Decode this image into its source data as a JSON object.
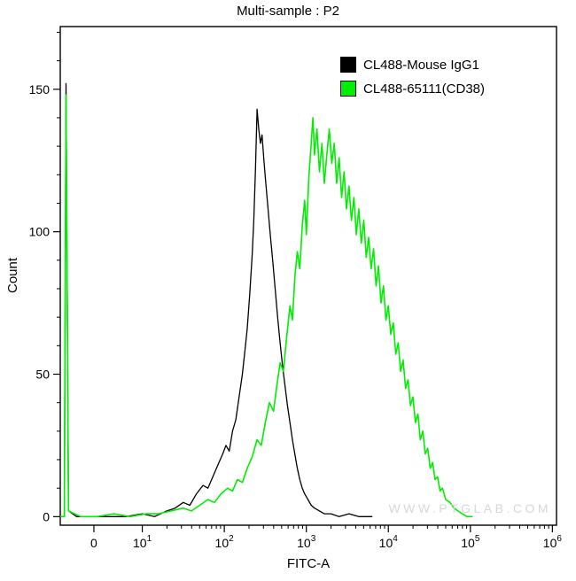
{
  "title": "Multi-sample : P2",
  "watermark": "WWW.PTGLAB.COM",
  "chart_data": {
    "type": "line",
    "subtype": "flow-cytometry-histogram-overlay",
    "title": "Multi-sample : P2",
    "xlabel": "FITC-A",
    "ylabel": "Count",
    "x_scale": "biexponential-log",
    "grid": false,
    "legend_position": "top-right",
    "xlim_decades": [
      0,
      6.05
    ],
    "ylim": [
      -3,
      172
    ],
    "y_ticks": [
      0,
      50,
      100,
      150
    ],
    "y_minor_step": 10,
    "x_ticks": [
      {
        "text": "0",
        "d": 0.41
      },
      {
        "text": "10",
        "exp": "1",
        "d": 1.0
      },
      {
        "text": "10",
        "exp": "2",
        "d": 2.0
      },
      {
        "text": "10",
        "exp": "3",
        "d": 3.0
      },
      {
        "text": "10",
        "exp": "4",
        "d": 4.0
      },
      {
        "text": "10",
        "exp": "5",
        "d": 5.0
      },
      {
        "text": "10",
        "exp": "6",
        "d": 6.0
      }
    ],
    "series": [
      {
        "name": "CL488-Mouse IgG1",
        "color": "#000000",
        "peak_x_decade": 2.4,
        "peak_count": 143,
        "points": [
          [
            0.0,
            0
          ],
          [
            0.05,
            0
          ],
          [
            0.07,
            152
          ],
          [
            0.1,
            2
          ],
          [
            0.2,
            0
          ],
          [
            0.4,
            0
          ],
          [
            0.6,
            0
          ],
          [
            0.8,
            0
          ],
          [
            1.0,
            1
          ],
          [
            1.15,
            0
          ],
          [
            1.3,
            2
          ],
          [
            1.4,
            3
          ],
          [
            1.5,
            5
          ],
          [
            1.58,
            4
          ],
          [
            1.66,
            8
          ],
          [
            1.74,
            11
          ],
          [
            1.8,
            10
          ],
          [
            1.86,
            14
          ],
          [
            1.92,
            18
          ],
          [
            1.98,
            22
          ],
          [
            2.02,
            25
          ],
          [
            2.06,
            23
          ],
          [
            2.1,
            30
          ],
          [
            2.14,
            34
          ],
          [
            2.18,
            42
          ],
          [
            2.22,
            50
          ],
          [
            2.25,
            58
          ],
          [
            2.28,
            66
          ],
          [
            2.31,
            78
          ],
          [
            2.34,
            92
          ],
          [
            2.36,
            104
          ],
          [
            2.38,
            122
          ],
          [
            2.4,
            143
          ],
          [
            2.42,
            136
          ],
          [
            2.44,
            131
          ],
          [
            2.46,
            134
          ],
          [
            2.48,
            126
          ],
          [
            2.5,
            119
          ],
          [
            2.53,
            109
          ],
          [
            2.56,
            99
          ],
          [
            2.59,
            90
          ],
          [
            2.62,
            80
          ],
          [
            2.65,
            70
          ],
          [
            2.68,
            61
          ],
          [
            2.71,
            53
          ],
          [
            2.74,
            46
          ],
          [
            2.77,
            39
          ],
          [
            2.8,
            33
          ],
          [
            2.83,
            27
          ],
          [
            2.86,
            22
          ],
          [
            2.89,
            17
          ],
          [
            2.92,
            13
          ],
          [
            2.95,
            10
          ],
          [
            2.98,
            8
          ],
          [
            3.02,
            6
          ],
          [
            3.06,
            4
          ],
          [
            3.1,
            3
          ],
          [
            3.16,
            2
          ],
          [
            3.22,
            1
          ],
          [
            3.3,
            1
          ],
          [
            3.4,
            0
          ],
          [
            3.52,
            1
          ],
          [
            3.64,
            0
          ],
          [
            3.8,
            0
          ]
        ]
      },
      {
        "name": "CL488-65111(CD38)",
        "color": "#00ee00",
        "peak_x_decade": 3.08,
        "peak_count": 140,
        "points": [
          [
            0.0,
            0
          ],
          [
            0.05,
            0
          ],
          [
            0.07,
            148
          ],
          [
            0.1,
            2
          ],
          [
            0.25,
            0
          ],
          [
            0.45,
            0
          ],
          [
            0.65,
            1
          ],
          [
            0.85,
            0
          ],
          [
            1.05,
            1
          ],
          [
            1.2,
            1
          ],
          [
            1.35,
            2
          ],
          [
            1.5,
            3
          ],
          [
            1.6,
            2
          ],
          [
            1.7,
            4
          ],
          [
            1.8,
            6
          ],
          [
            1.88,
            5
          ],
          [
            1.96,
            8
          ],
          [
            2.04,
            10
          ],
          [
            2.1,
            9
          ],
          [
            2.16,
            13
          ],
          [
            2.22,
            12
          ],
          [
            2.28,
            17
          ],
          [
            2.34,
            21
          ],
          [
            2.4,
            27
          ],
          [
            2.45,
            25
          ],
          [
            2.5,
            33
          ],
          [
            2.55,
            40
          ],
          [
            2.6,
            37
          ],
          [
            2.64,
            46
          ],
          [
            2.68,
            54
          ],
          [
            2.72,
            51
          ],
          [
            2.76,
            63
          ],
          [
            2.8,
            74
          ],
          [
            2.83,
            69
          ],
          [
            2.86,
            84
          ],
          [
            2.89,
            93
          ],
          [
            2.92,
            87
          ],
          [
            2.95,
            102
          ],
          [
            2.98,
            111
          ],
          [
            3.0,
            99
          ],
          [
            3.03,
            119
          ],
          [
            3.06,
            131
          ],
          [
            3.08,
            140
          ],
          [
            3.1,
            127
          ],
          [
            3.13,
            136
          ],
          [
            3.16,
            121
          ],
          [
            3.19,
            131
          ],
          [
            3.22,
            117
          ],
          [
            3.25,
            127
          ],
          [
            3.28,
            136
          ],
          [
            3.31,
            124
          ],
          [
            3.34,
            131
          ],
          [
            3.37,
            117
          ],
          [
            3.4,
            126
          ],
          [
            3.43,
            112
          ],
          [
            3.46,
            121
          ],
          [
            3.49,
            108
          ],
          [
            3.52,
            116
          ],
          [
            3.55,
            104
          ],
          [
            3.58,
            112
          ],
          [
            3.61,
            99
          ],
          [
            3.64,
            108
          ],
          [
            3.67,
            96
          ],
          [
            3.7,
            104
          ],
          [
            3.73,
            91
          ],
          [
            3.76,
            98
          ],
          [
            3.79,
            87
          ],
          [
            3.82,
            94
          ],
          [
            3.85,
            81
          ],
          [
            3.88,
            88
          ],
          [
            3.91,
            75
          ],
          [
            3.94,
            81
          ],
          [
            3.97,
            69
          ],
          [
            4.0,
            74
          ],
          [
            4.03,
            64
          ],
          [
            4.06,
            68
          ],
          [
            4.09,
            57
          ],
          [
            4.12,
            61
          ],
          [
            4.15,
            51
          ],
          [
            4.18,
            55
          ],
          [
            4.21,
            45
          ],
          [
            4.24,
            48
          ],
          [
            4.27,
            39
          ],
          [
            4.3,
            42
          ],
          [
            4.33,
            33
          ],
          [
            4.36,
            36
          ],
          [
            4.39,
            27
          ],
          [
            4.42,
            30
          ],
          [
            4.45,
            22
          ],
          [
            4.48,
            24
          ],
          [
            4.51,
            17
          ],
          [
            4.54,
            19
          ],
          [
            4.57,
            13
          ],
          [
            4.6,
            14
          ],
          [
            4.63,
            9
          ],
          [
            4.66,
            10
          ],
          [
            4.7,
            6
          ],
          [
            4.75,
            5
          ],
          [
            4.8,
            3
          ],
          [
            4.85,
            2
          ],
          [
            4.9,
            1
          ],
          [
            4.96,
            0
          ],
          [
            5.02,
            0
          ]
        ]
      }
    ]
  }
}
